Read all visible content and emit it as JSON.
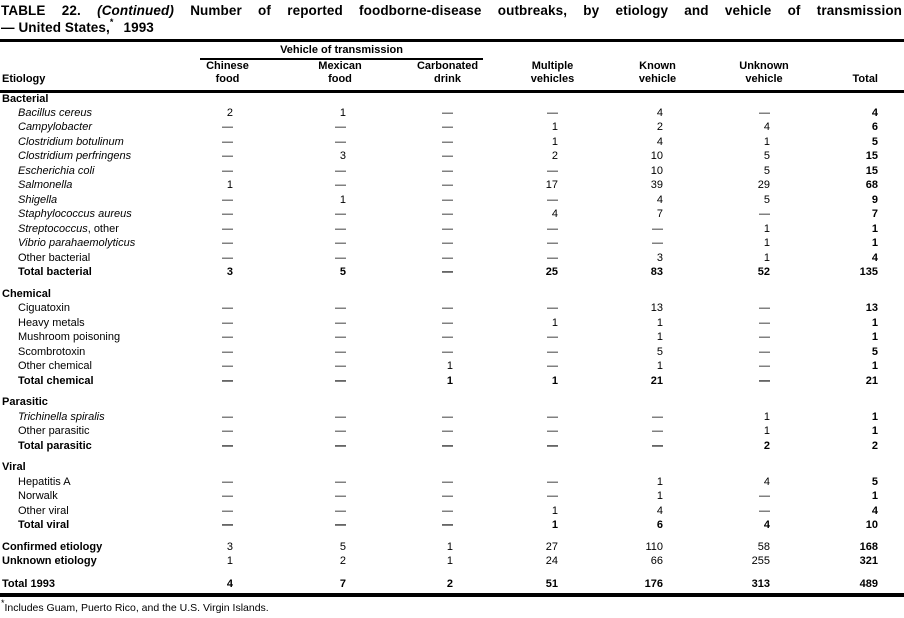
{
  "title": {
    "table_label": "TABLE 22.",
    "continued": "(Continued)",
    "line1_rest": "Number of reported foodborne-disease outbreaks, by etiology and vehicle of transmission",
    "line2_prefix": "— United States,",
    "footnote_marker": "*",
    "year": "1993"
  },
  "table": {
    "header": {
      "etiology": "Etiology",
      "spanner": "Vehicle of transmission",
      "columns": [
        {
          "line1": "Chinese",
          "line2": "food"
        },
        {
          "line1": "Mexican",
          "line2": "food"
        },
        {
          "line1": "Carbonated",
          "line2": "drink"
        },
        {
          "line1": "Multiple",
          "line2": "vehicles"
        },
        {
          "line1": "Known",
          "line2": "vehicle"
        },
        {
          "line1": "Unknown",
          "line2": "vehicle"
        }
      ],
      "total": "Total"
    },
    "sections": [
      {
        "name": "Bacterial",
        "rows": [
          {
            "label": "Bacillus cereus",
            "italic": true,
            "values": [
              "2",
              "1",
              "—",
              "—",
              "4",
              "—",
              "4"
            ]
          },
          {
            "label": "Campylobacter",
            "italic": true,
            "values": [
              "—",
              "—",
              "—",
              "1",
              "2",
              "4",
              "6"
            ]
          },
          {
            "label": "Clostridium botulinum",
            "italic": true,
            "values": [
              "—",
              "—",
              "—",
              "1",
              "4",
              "1",
              "5"
            ]
          },
          {
            "label": "Clostridium perfringens",
            "italic": true,
            "values": [
              "—",
              "3",
              "—",
              "2",
              "10",
              "5",
              "15"
            ]
          },
          {
            "label": "Escherichia coli",
            "italic": true,
            "values": [
              "—",
              "—",
              "—",
              "—",
              "10",
              "5",
              "15"
            ]
          },
          {
            "label": "Salmonella",
            "italic": true,
            "values": [
              "1",
              "—",
              "—",
              "17",
              "39",
              "29",
              "68"
            ]
          },
          {
            "label": "Shigella",
            "italic": true,
            "values": [
              "—",
              "1",
              "—",
              "—",
              "4",
              "5",
              "9"
            ]
          },
          {
            "label": "Staphylococcus aureus",
            "italic": true,
            "values": [
              "—",
              "—",
              "—",
              "4",
              "7",
              "—",
              "7"
            ]
          },
          {
            "label": "Streptococcus",
            "italic": true,
            "label_suffix": ", other",
            "values": [
              "—",
              "—",
              "—",
              "—",
              "—",
              "1",
              "1"
            ]
          },
          {
            "label": "Vibrio parahaemolyticus",
            "italic": true,
            "values": [
              "—",
              "—",
              "—",
              "—",
              "—",
              "1",
              "1"
            ]
          },
          {
            "label": "Other bacterial",
            "italic": false,
            "values": [
              "—",
              "—",
              "—",
              "—",
              "3",
              "1",
              "4"
            ]
          }
        ],
        "total_row": {
          "label": "Total bacterial",
          "values": [
            "3",
            "5",
            "—",
            "25",
            "83",
            "52",
            "135"
          ]
        }
      },
      {
        "name": "Chemical",
        "rows": [
          {
            "label": "Ciguatoxin",
            "italic": false,
            "values": [
              "—",
              "—",
              "—",
              "—",
              "13",
              "—",
              "13"
            ]
          },
          {
            "label": "Heavy metals",
            "italic": false,
            "values": [
              "—",
              "—",
              "—",
              "1",
              "1",
              "—",
              "1"
            ]
          },
          {
            "label": "Mushroom poisoning",
            "italic": false,
            "values": [
              "—",
              "—",
              "—",
              "—",
              "1",
              "—",
              "1"
            ]
          },
          {
            "label": "Scombrotoxin",
            "italic": false,
            "values": [
              "—",
              "—",
              "—",
              "—",
              "5",
              "—",
              "5"
            ]
          },
          {
            "label": "Other chemical",
            "italic": false,
            "values": [
              "—",
              "—",
              "1",
              "—",
              "1",
              "—",
              "1"
            ]
          }
        ],
        "total_row": {
          "label": "Total chemical",
          "values": [
            "—",
            "—",
            "1",
            "1",
            "21",
            "—",
            "21"
          ]
        }
      },
      {
        "name": "Parasitic",
        "rows": [
          {
            "label": "Trichinella spiralis",
            "italic": true,
            "values": [
              "—",
              "—",
              "—",
              "—",
              "—",
              "1",
              "1"
            ]
          },
          {
            "label": "Other parasitic",
            "italic": false,
            "values": [
              "—",
              "—",
              "—",
              "—",
              "—",
              "1",
              "1"
            ]
          }
        ],
        "total_row": {
          "label": "Total parasitic",
          "values": [
            "—",
            "—",
            "—",
            "—",
            "—",
            "2",
            "2"
          ]
        }
      },
      {
        "name": "Viral",
        "rows": [
          {
            "label": "Hepatitis A",
            "italic": false,
            "values": [
              "—",
              "—",
              "—",
              "—",
              "1",
              "4",
              "5"
            ]
          },
          {
            "label": "Norwalk",
            "italic": false,
            "values": [
              "—",
              "—",
              "—",
              "—",
              "1",
              "—",
              "1"
            ]
          },
          {
            "label": "Other viral",
            "italic": false,
            "values": [
              "—",
              "—",
              "—",
              "1",
              "4",
              "—",
              "4"
            ]
          }
        ],
        "total_row": {
          "label": "Total viral",
          "values": [
            "—",
            "—",
            "—",
            "1",
            "6",
            "4",
            "10"
          ]
        }
      }
    ],
    "summary_rows": [
      {
        "label": "Confirmed etiology",
        "values": [
          "3",
          "5",
          "1",
          "27",
          "110",
          "58",
          "168"
        ]
      },
      {
        "label": "Unknown etiology",
        "values": [
          "1",
          "2",
          "1",
          "24",
          "66",
          "255",
          "321"
        ]
      }
    ],
    "grand_total_row": {
      "label": "Total 1993",
      "values": [
        "4",
        "7",
        "2",
        "51",
        "176",
        "313",
        "489"
      ]
    }
  },
  "footnote": {
    "marker": "*",
    "text": "Includes Guam, Puerto Rico, and the U.S. Virgin Islands."
  }
}
